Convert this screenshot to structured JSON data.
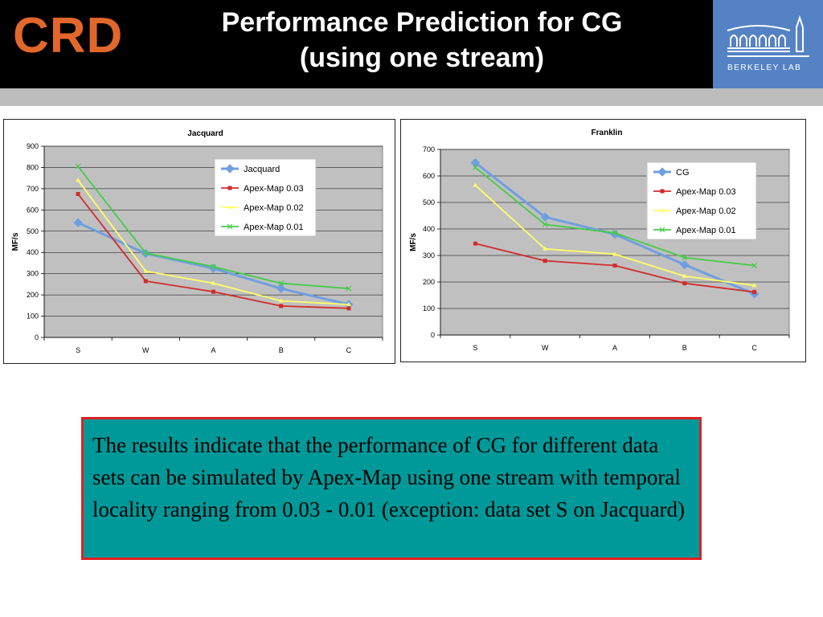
{
  "header": {
    "logo_text": "CRD",
    "title_line1": "Performance Prediction for CG",
    "title_line2": "(using one stream)",
    "lab_logo_text": "BERKELEY LAB"
  },
  "colors": {
    "header_bg": "#000000",
    "logo_orange": "#e2672b",
    "lab_blue": "#5582c4",
    "band_gray": "#bdbdbd",
    "plot_bg": "#c0c0c0",
    "textbox_bg": "#009999",
    "textbox_border": "#e02020"
  },
  "chart_data": [
    {
      "type": "line",
      "title": "Jacquard",
      "ylabel": "MF/s",
      "xlabel": "",
      "categories": [
        "S",
        "W",
        "A",
        "B",
        "C"
      ],
      "ylim": [
        0,
        900
      ],
      "yticks": [
        0,
        100,
        200,
        300,
        400,
        500,
        600,
        700,
        800,
        900
      ],
      "grid": true,
      "legend": "top-right",
      "series": [
        {
          "name": "Jacquard",
          "color": "#6f9fe0",
          "marker": "diamond",
          "values": [
            540,
            395,
            325,
            230,
            155
          ]
        },
        {
          "name": "Apex-Map 0.03",
          "color": "#d22b2b",
          "marker": "square",
          "values": [
            675,
            265,
            215,
            148,
            137
          ]
        },
        {
          "name": "Apex-Map 0.02",
          "color": "#ffff66",
          "marker": "triangle",
          "values": [
            740,
            312,
            255,
            172,
            155
          ]
        },
        {
          "name": "Apex-Map 0.01",
          "color": "#44cc44",
          "marker": "x",
          "values": [
            805,
            397,
            333,
            255,
            230
          ]
        }
      ]
    },
    {
      "type": "line",
      "title": "Franklin",
      "ylabel": "MF/s",
      "xlabel": "",
      "categories": [
        "S",
        "W",
        "A",
        "B",
        "C"
      ],
      "ylim": [
        0,
        700
      ],
      "yticks": [
        0,
        100,
        200,
        300,
        400,
        500,
        600,
        700
      ],
      "grid": true,
      "legend": "top-right",
      "series": [
        {
          "name": "CG",
          "color": "#6f9fe0",
          "marker": "diamond",
          "values": [
            650,
            445,
            380,
            265,
            155
          ]
        },
        {
          "name": "Apex-Map 0.03",
          "color": "#d22b2b",
          "marker": "square",
          "values": [
            345,
            280,
            262,
            195,
            162
          ]
        },
        {
          "name": "Apex-Map 0.02",
          "color": "#ffff66",
          "marker": "triangle",
          "values": [
            565,
            325,
            305,
            222,
            187
          ]
        },
        {
          "name": "Apex-Map 0.01",
          "color": "#44cc44",
          "marker": "x",
          "values": [
            632,
            417,
            385,
            292,
            262
          ]
        }
      ]
    }
  ],
  "conclusion": {
    "text": "The results indicate that the performance of CG for different data sets can be simulated by Apex-Map using one stream with temporal locality ranging from 0.03 - 0.01 (exception: data set S on Jacquard)"
  }
}
